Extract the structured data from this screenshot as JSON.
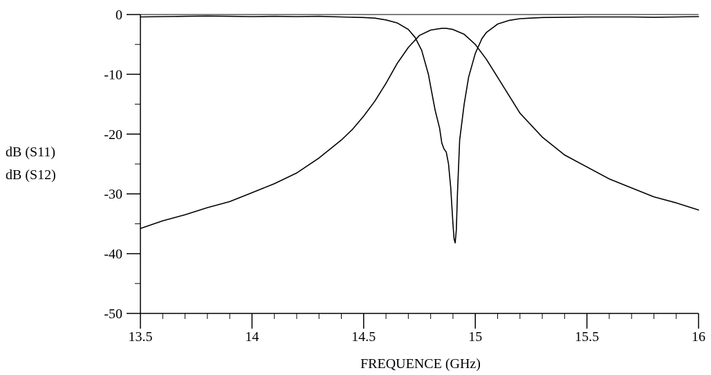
{
  "chart_data": {
    "type": "line",
    "title": "",
    "xlabel": "FREQUENCE (GHz)",
    "ylabels": [
      "dB (S11)",
      "dB (S12)"
    ],
    "xlim": [
      13.5,
      16
    ],
    "ylim": [
      -50,
      0
    ],
    "x_ticks": [
      13.5,
      14,
      14.5,
      15,
      15.5,
      16
    ],
    "x_tick_labels": [
      "13.5",
      "14",
      "14.5",
      "15",
      "15.5",
      "16"
    ],
    "y_ticks": [
      0,
      -10,
      -20,
      -30,
      -40,
      -50
    ],
    "y_tick_labels": [
      "0",
      "-10",
      "-20",
      "-30",
      "-40",
      "-50"
    ],
    "x_minor_step": 0.1,
    "y_minor_step": 5,
    "grid": false,
    "series": [
      {
        "id": "s11",
        "x": [
          13.5,
          13.6,
          13.7,
          13.8,
          13.9,
          14.0,
          14.1,
          14.2,
          14.3,
          14.4,
          14.5,
          14.55,
          14.6,
          14.65,
          14.7,
          14.73,
          14.76,
          14.79,
          14.8,
          14.82,
          14.84,
          14.85,
          14.86,
          14.87,
          14.88,
          14.89,
          14.9,
          14.905,
          14.91,
          14.915,
          14.92,
          14.93,
          14.95,
          14.97,
          15.0,
          15.03,
          15.05,
          15.1,
          15.15,
          15.2,
          15.3,
          15.4,
          15.5,
          15.6,
          15.7,
          15.8,
          15.9,
          16.0
        ],
        "y": [
          -0.4,
          -0.35,
          -0.3,
          -0.25,
          -0.3,
          -0.35,
          -0.3,
          -0.35,
          -0.3,
          -0.4,
          -0.5,
          -0.6,
          -0.9,
          -1.4,
          -2.5,
          -3.8,
          -6.0,
          -10.0,
          -12.0,
          -16.0,
          -19.0,
          -21.5,
          -22.5,
          -23.0,
          -25.0,
          -29.0,
          -35.0,
          -37.5,
          -38.2,
          -36.0,
          -30.0,
          -21.0,
          -15.0,
          -10.5,
          -6.5,
          -4.0,
          -3.0,
          -1.6,
          -1.0,
          -0.7,
          -0.5,
          -0.45,
          -0.4,
          -0.4,
          -0.4,
          -0.45,
          -0.4,
          -0.35
        ]
      },
      {
        "id": "s12",
        "x": [
          13.5,
          13.6,
          13.7,
          13.8,
          13.9,
          14.0,
          14.1,
          14.2,
          14.3,
          14.4,
          14.45,
          14.5,
          14.55,
          14.6,
          14.65,
          14.7,
          14.75,
          14.8,
          14.85,
          14.87,
          14.9,
          14.95,
          15.0,
          15.05,
          15.1,
          15.15,
          15.2,
          15.25,
          15.3,
          15.4,
          15.5,
          15.6,
          15.7,
          15.8,
          15.9,
          16.0
        ],
        "y": [
          -35.8,
          -34.5,
          -33.5,
          -32.3,
          -31.3,
          -29.8,
          -28.3,
          -26.5,
          -24.0,
          -21.0,
          -19.2,
          -17.0,
          -14.5,
          -11.5,
          -8.2,
          -5.5,
          -3.5,
          -2.6,
          -2.3,
          -2.3,
          -2.5,
          -3.3,
          -5.0,
          -7.5,
          -10.5,
          -13.5,
          -16.5,
          -18.5,
          -20.5,
          -23.5,
          -25.5,
          -27.5,
          -29.0,
          -30.5,
          -31.5,
          -32.7
        ]
      }
    ]
  }
}
